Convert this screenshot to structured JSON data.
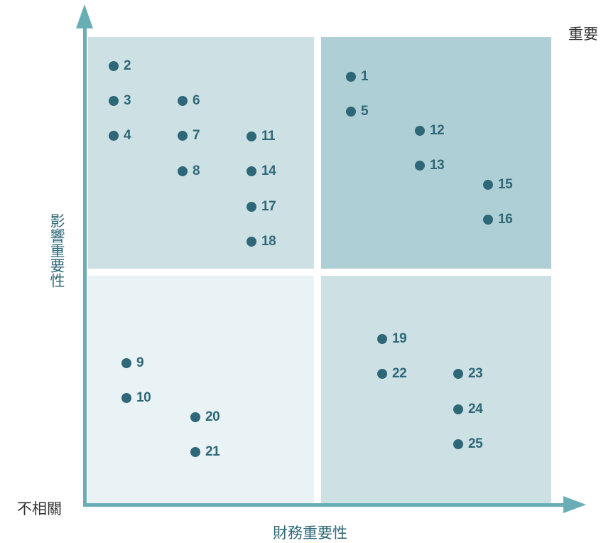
{
  "colors": {
    "axis": "#6aaeb5",
    "dot": "#2e6777",
    "quadrant_top_left": "#cde1e5",
    "quadrant_top_right": "#aecfd5",
    "quadrant_bottom_left": "#e9f2f4",
    "quadrant_bottom_right": "#cde1e5"
  },
  "labels": {
    "important": "重要",
    "irrelevant": "不相關",
    "x_axis": "財務重要性",
    "y_axis": "影響重要性"
  },
  "quadrants": {
    "top_left": {
      "points": [
        "2",
        "3",
        "4",
        "6",
        "7",
        "8",
        "11",
        "14",
        "17",
        "18"
      ]
    },
    "top_right": {
      "points": [
        "1",
        "5",
        "12",
        "13",
        "15",
        "16"
      ]
    },
    "bottom_left": {
      "points": [
        "9",
        "10",
        "20",
        "21"
      ]
    },
    "bottom_right": {
      "points": [
        "19",
        "22",
        "23",
        "24",
        "25"
      ]
    }
  }
}
